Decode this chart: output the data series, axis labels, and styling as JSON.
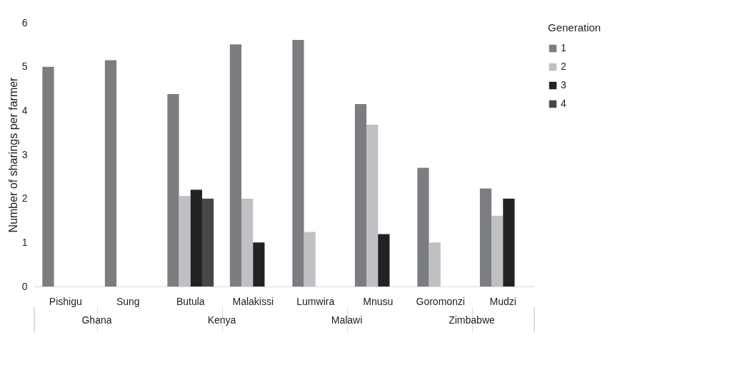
{
  "chart_data": {
    "type": "bar",
    "ylabel": "Number of sharings per farmer",
    "legend_title": "Generation",
    "categories": [
      "Pishigu",
      "Sung",
      "Butula",
      "Malakissi",
      "Lumwira",
      "Mnusu",
      "Goromonzi",
      "Mudzi"
    ],
    "series": [
      {
        "name": "1",
        "color": "#7c7d80",
        "values": [
          5.0,
          5.15,
          4.38,
          5.51,
          5.61,
          4.15,
          2.7,
          2.23
        ]
      },
      {
        "name": "2",
        "color": "#bfc0c3",
        "values": [
          null,
          null,
          2.06,
          2.0,
          1.24,
          3.68,
          1.0,
          1.61
        ]
      },
      {
        "name": "3",
        "color": "#222222",
        "values": [
          null,
          null,
          2.2,
          1.0,
          null,
          1.19,
          null,
          2.0
        ]
      },
      {
        "name": "4",
        "color": "#464749",
        "values": [
          null,
          null,
          2.0,
          null,
          null,
          null,
          null,
          null
        ]
      }
    ],
    "ylim": [
      0,
      6
    ],
    "yticks": [
      0,
      1,
      2,
      3,
      4,
      5,
      6
    ],
    "grid": false,
    "legend": "right",
    "annotations": [
      "Ghana",
      "Kenya",
      "Malawi",
      "Zimbabwe"
    ]
  }
}
